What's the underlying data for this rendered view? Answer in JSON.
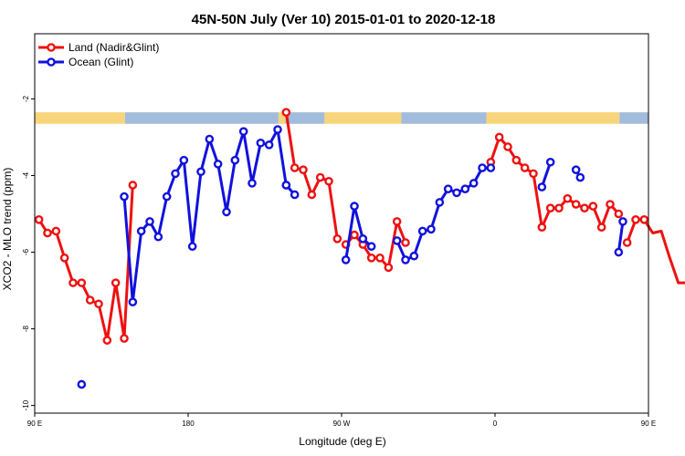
{
  "chart_data": {
    "type": "line",
    "title": "45N-50N July (Ver 10)   2015-01-01 to 2020-12-18",
    "xlabel": "Longitude (deg E)",
    "ylabel": "XCO2 - MLO trend (ppm)",
    "xlim": [
      90,
      450
    ],
    "ylim": [
      -10.2,
      -0.3
    ],
    "grid": false,
    "legend_position": "top-left",
    "x_ticks": [
      {
        "value": 90,
        "label": "90 E"
      },
      {
        "value": 180,
        "label": "180"
      },
      {
        "value": 270,
        "label": "90 W"
      },
      {
        "value": 360,
        "label": "0"
      },
      {
        "value": 450,
        "label": "90 E"
      },
      {
        "value": 540,
        "label": "180"
      }
    ],
    "y_ticks": [
      {
        "value": -2,
        "label": "-2"
      },
      {
        "value": -4,
        "label": "-4"
      },
      {
        "value": -6,
        "label": "-6"
      },
      {
        "value": -8,
        "label": "-8"
      },
      {
        "value": -10,
        "label": "-10"
      }
    ],
    "land_ocean_bar": {
      "y_range": [
        -2.65,
        -2.35
      ],
      "land_color": "#f7d57a",
      "ocean_color": "#a3bcdc",
      "segments": [
        {
          "type": "land",
          "from": 90,
          "to": 143
        },
        {
          "type": "ocean",
          "from": 143,
          "to": 233
        },
        {
          "type": "land",
          "from": 233,
          "to": 237
        },
        {
          "type": "ocean",
          "from": 237,
          "to": 260
        },
        {
          "type": "land",
          "from": 260,
          "to": 305
        },
        {
          "type": "ocean",
          "from": 305,
          "to": 355
        },
        {
          "type": "land",
          "from": 355,
          "to": 433
        },
        {
          "type": "ocean",
          "from": 433,
          "to": 450
        },
        {
          "type": "land",
          "from": 450,
          "to": 503
        },
        {
          "type": "ocean",
          "from": 503,
          "to": 540
        }
      ]
    },
    "series": [
      {
        "name": "Land (Nadir&Glint)",
        "color": "#ee1111",
        "segments": [
          {
            "x": [
              92.5,
              97.5,
              102.5,
              107.5,
              112.5,
              117.5,
              122.5,
              127.5,
              132.5,
              137.5,
              142.5,
              147.5
            ],
            "y": [
              -5.15,
              -5.5,
              -5.45,
              -6.15,
              -6.8,
              -6.8,
              -7.25,
              -7.35,
              -8.3,
              -6.8,
              -8.25,
              -4.25
            ]
          },
          {
            "x": [
              237.5,
              242.5,
              247.5,
              252.5,
              257.5,
              262.5,
              267.5
            ],
            "y": [
              -2.35,
              -3.8,
              -3.85,
              -4.5,
              -4.05,
              -4.15,
              -5.65
            ]
          },
          {
            "x": [
              272.5,
              277.5,
              282.5,
              287.5,
              292.5,
              297.5,
              302.5,
              307.5
            ],
            "y": [
              -5.8,
              -5.55,
              -5.8,
              -6.15,
              -6.15,
              -6.4,
              -5.2,
              -5.75
            ]
          },
          {
            "x": [
              357.5,
              362.5,
              367.5,
              372.5,
              377.5,
              382.5,
              387.5,
              392.5,
              397.5,
              402.5,
              407.5,
              412.5,
              417.5,
              422.5,
              427.5,
              432.5
            ],
            "y": [
              -3.65,
              -3.0,
              -3.25,
              -3.6,
              -3.8,
              -3.95,
              -5.35,
              -4.85,
              -4.85,
              -4.6,
              -4.75,
              -4.85,
              -4.8,
              -5.35,
              -4.75,
              -5.0
            ]
          },
          {
            "x": [
              437.5,
              442.5,
              447.5,
              452.5,
              457.5,
              462.5,
              467.5,
              472.5,
              477.5,
              482.5,
              487.5,
              492.5,
              497.5,
              502.5,
              507.5
            ],
            "y": [
              -5.75,
              -5.15,
              -5.15,
              -5.5,
              -5.45,
              -6.15,
              -6.8,
              -6.8,
              -7.25,
              -7.35,
              -8.3,
              -6.8,
              -8.25,
              -4.25,
              -4.25
            ]
          }
        ]
      },
      {
        "name": "Ocean (Glint)",
        "color": "#1111dd",
        "segments": [
          {
            "x": [
              117.5
            ],
            "y": [
              -9.45
            ]
          },
          {
            "x": [
              142.5,
              147.5,
              152.5,
              157.5,
              162.5,
              167.5,
              172.5,
              177.5,
              182.5,
              187.5,
              192.5,
              197.5,
              202.5,
              207.5,
              212.5,
              217.5,
              222.5,
              227.5,
              232.5,
              237.5
            ],
            "y": [
              -4.55,
              -7.3,
              -5.45,
              -5.2,
              -5.6,
              -4.55,
              -3.95,
              -3.6,
              -5.85,
              -3.9,
              -3.05,
              -3.7,
              -4.95,
              -3.6,
              -2.85,
              -4.2,
              -3.15,
              -3.2,
              -2.8,
              -4.25
            ]
          },
          {
            "x": [
              237.5,
              242.5
            ],
            "y": [
              -4.25,
              -4.5
            ]
          },
          {
            "x": [
              272.5,
              277.5,
              282.5,
              287.5
            ],
            "y": [
              -6.2,
              -4.8,
              -5.65,
              -5.85
            ]
          },
          {
            "x": [
              302.5,
              307.5,
              312.5,
              317.5,
              322.5,
              327.5,
              332.5,
              337.5,
              342.5,
              347.5,
              352.5,
              357.5
            ],
            "y": [
              -5.7,
              -6.2,
              -6.1,
              -5.45,
              -5.4,
              -4.7,
              -4.35,
              -4.45,
              -4.35,
              -4.2,
              -3.8,
              -3.8
            ]
          },
          {
            "x": [
              387.5,
              392.5
            ],
            "y": [
              -4.3,
              -3.65
            ]
          },
          {
            "x": [
              407.5,
              410.0
            ],
            "y": [
              -3.85,
              -4.05
            ]
          },
          {
            "x": [
              432.5,
              435.0
            ],
            "y": [
              -6.0,
              -5.2
            ]
          },
          {
            "x": [
              472.5
            ],
            "y": [
              -9.45
            ]
          },
          {
            "x": [
              497.5,
              502.5,
              507.5,
              512.5,
              517.5,
              522.5,
              527.5,
              532.5,
              537.5,
              542.5
            ],
            "y": [
              -4.55,
              -7.3,
              -5.45,
              -5.2,
              -5.6,
              -4.55,
              -3.95,
              -3.6,
              -5.85,
              -3.9
            ]
          }
        ]
      }
    ]
  }
}
